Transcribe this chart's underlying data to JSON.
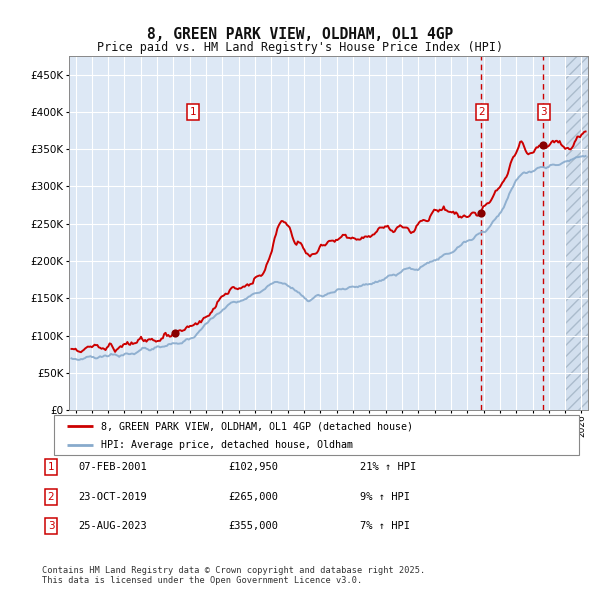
{
  "title": "8, GREEN PARK VIEW, OLDHAM, OL1 4GP",
  "subtitle": "Price paid vs. HM Land Registry's House Price Index (HPI)",
  "ylim": [
    0,
    475000
  ],
  "yticks": [
    0,
    50000,
    100000,
    150000,
    200000,
    250000,
    300000,
    350000,
    400000,
    450000
  ],
  "price_paid_color": "#cc0000",
  "hpi_color": "#88aacc",
  "fig_bg_color": "#ffffff",
  "plot_bg_color": "#dde8f5",
  "sale_marker_color": "#880000",
  "vline_color": "#cc0000",
  "grid_color": "#ffffff",
  "sale1_year": 2001.1,
  "sale1_price": 102950,
  "sale2_year": 2019.83,
  "sale2_price": 265000,
  "sale3_year": 2023.65,
  "sale3_price": 355000,
  "legend_line1": "8, GREEN PARK VIEW, OLDHAM, OL1 4GP (detached house)",
  "legend_line2": "HPI: Average price, detached house, Oldham",
  "footer1": "Contains HM Land Registry data © Crown copyright and database right 2025.",
  "footer2": "This data is licensed under the Open Government Licence v3.0.",
  "table_rows": [
    {
      "num": "1",
      "date": "07-FEB-2001",
      "price": "£102,950",
      "hpi": "21% ↑ HPI"
    },
    {
      "num": "2",
      "date": "23-OCT-2019",
      "price": "£265,000",
      "hpi": "9% ↑ HPI"
    },
    {
      "num": "3",
      "date": "25-AUG-2023",
      "price": "£355,000",
      "hpi": "7% ↑ HPI"
    }
  ],
  "xmin": 1994.6,
  "xmax": 2026.4,
  "hatch_start": 2025.0
}
